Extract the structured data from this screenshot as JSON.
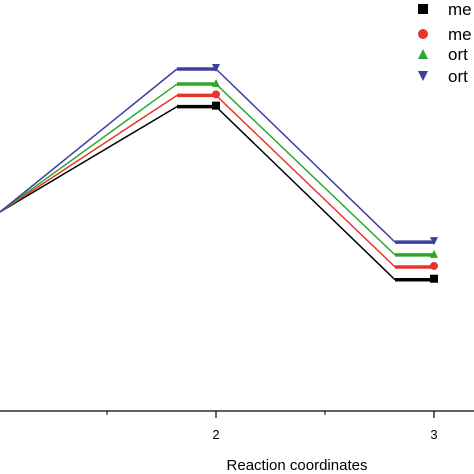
{
  "chart_data": {
    "type": "line",
    "title": "",
    "xlabel": "Reaction coordinates",
    "ylabel": "",
    "x_ticks": [
      {
        "value": 2,
        "label": "2"
      },
      {
        "value": 3,
        "label": "3"
      }
    ],
    "x_minor_ticks": [
      1,
      1.5,
      2.5
    ],
    "xlim": [
      0.6,
      3.2
    ],
    "ylim": [
      -10,
      26
    ],
    "grid": false,
    "legend": {
      "placement": "top-right",
      "entries": [
        {
          "label": "me",
          "color": "#000000",
          "marker": "square"
        },
        {
          "label": "me",
          "color": "#e8342a",
          "marker": "circle"
        },
        {
          "label": "ort",
          "color": "#2ca82c",
          "marker": "triangle-up"
        },
        {
          "label": "ort",
          "color": "#3b3fa0",
          "marker": "triangle-down"
        }
      ]
    },
    "series": [
      {
        "color": "#000000",
        "marker": "square",
        "values": [
          0,
          14,
          -9
        ]
      },
      {
        "color": "#e8342a",
        "marker": "circle",
        "values": [
          0,
          15.5,
          -7.3
        ]
      },
      {
        "color": "#2ca82c",
        "marker": "triangle-up",
        "values": [
          0,
          17,
          -5.7
        ]
      },
      {
        "color": "#3b3fa0",
        "marker": "triangle-down",
        "values": [
          0,
          19,
          -4
        ]
      }
    ],
    "x_states": [
      1,
      2,
      3
    ]
  }
}
